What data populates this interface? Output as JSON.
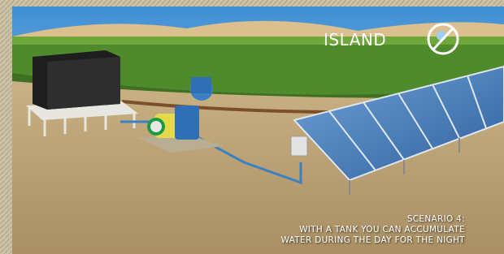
{
  "badge": {
    "label": "ISLAND"
  },
  "caption": {
    "lines": [
      "SCENARIO 4:",
      "WITH A TANK YOU CAN ACCUMULATE",
      "WATER DURING THE DAY FOR THE NIGHT"
    ]
  }
}
